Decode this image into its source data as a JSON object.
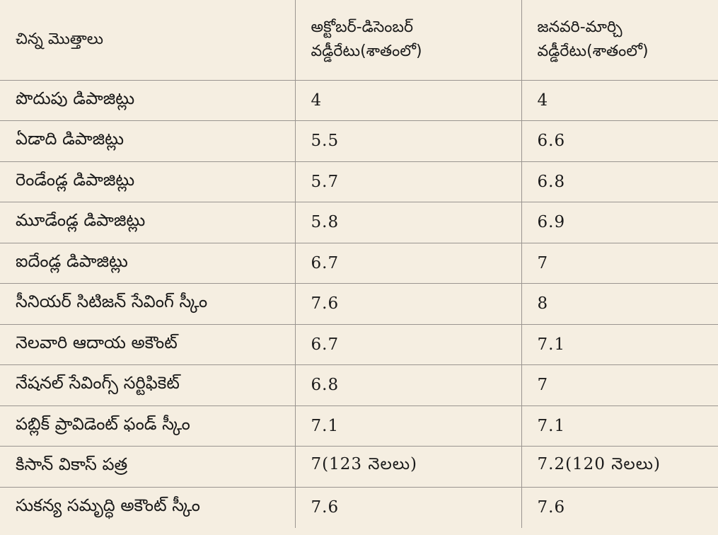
{
  "header": {
    "col1": "చిన్న మొత్తాలు",
    "col2_line1": "అక్టోబర్-డిసెంబర్",
    "col2_line2": "వడ్డీరేటు(శాతంలో)",
    "col3_line1": "జనవరి-మార్చి",
    "col3_line2": "వడ్డీరేటు(శాతంలో)"
  },
  "rows": [
    {
      "name": "పొదుపు డిపాజిట్లు",
      "oct_dec": "4",
      "jan_mar": "4"
    },
    {
      "name": "ఏడాది డిపాజిట్లు",
      "oct_dec": "5.5",
      "jan_mar": "6.6"
    },
    {
      "name": "రెండేండ్ల డిపాజిట్లు",
      "oct_dec": "5.7",
      "jan_mar": "6.8"
    },
    {
      "name": "మూడేండ్ల డిపాజిట్లు",
      "oct_dec": "5.8",
      "jan_mar": "6.9"
    },
    {
      "name": "ఐదేండ్ల డిపాజిట్లు",
      "oct_dec": "6.7",
      "jan_mar": "7"
    },
    {
      "name": "సీనియర్ సిటిజన్ సేవింగ్ స్కీం",
      "oct_dec": "7.6",
      "jan_mar": "8"
    },
    {
      "name": "నెలవారి ఆదాయ అకౌంట్",
      "oct_dec": "6.7",
      "jan_mar": "7.1"
    },
    {
      "name": "నేషనల్ సేవింగ్స్ సర్టిఫికెట్",
      "oct_dec": "6.8",
      "jan_mar": "7"
    },
    {
      "name": "పబ్లిక్ ప్రావిడెంట్ ఫండ్ స్కీం",
      "oct_dec": "7.1",
      "jan_mar": "7.1"
    },
    {
      "name": "కిసాన్ వికాస్ పత్ర",
      "oct_dec": "7(123 నెలలు)",
      "jan_mar": "7.2(120 నెలలు)"
    },
    {
      "name": "సుకన్య సమృద్ధి అకౌంట్ స్కీం",
      "oct_dec": "7.6",
      "jan_mar": "7.6"
    }
  ],
  "colors": {
    "background": "#f5eee1",
    "rule": "#9a9590",
    "text": "#1a1a1a"
  }
}
